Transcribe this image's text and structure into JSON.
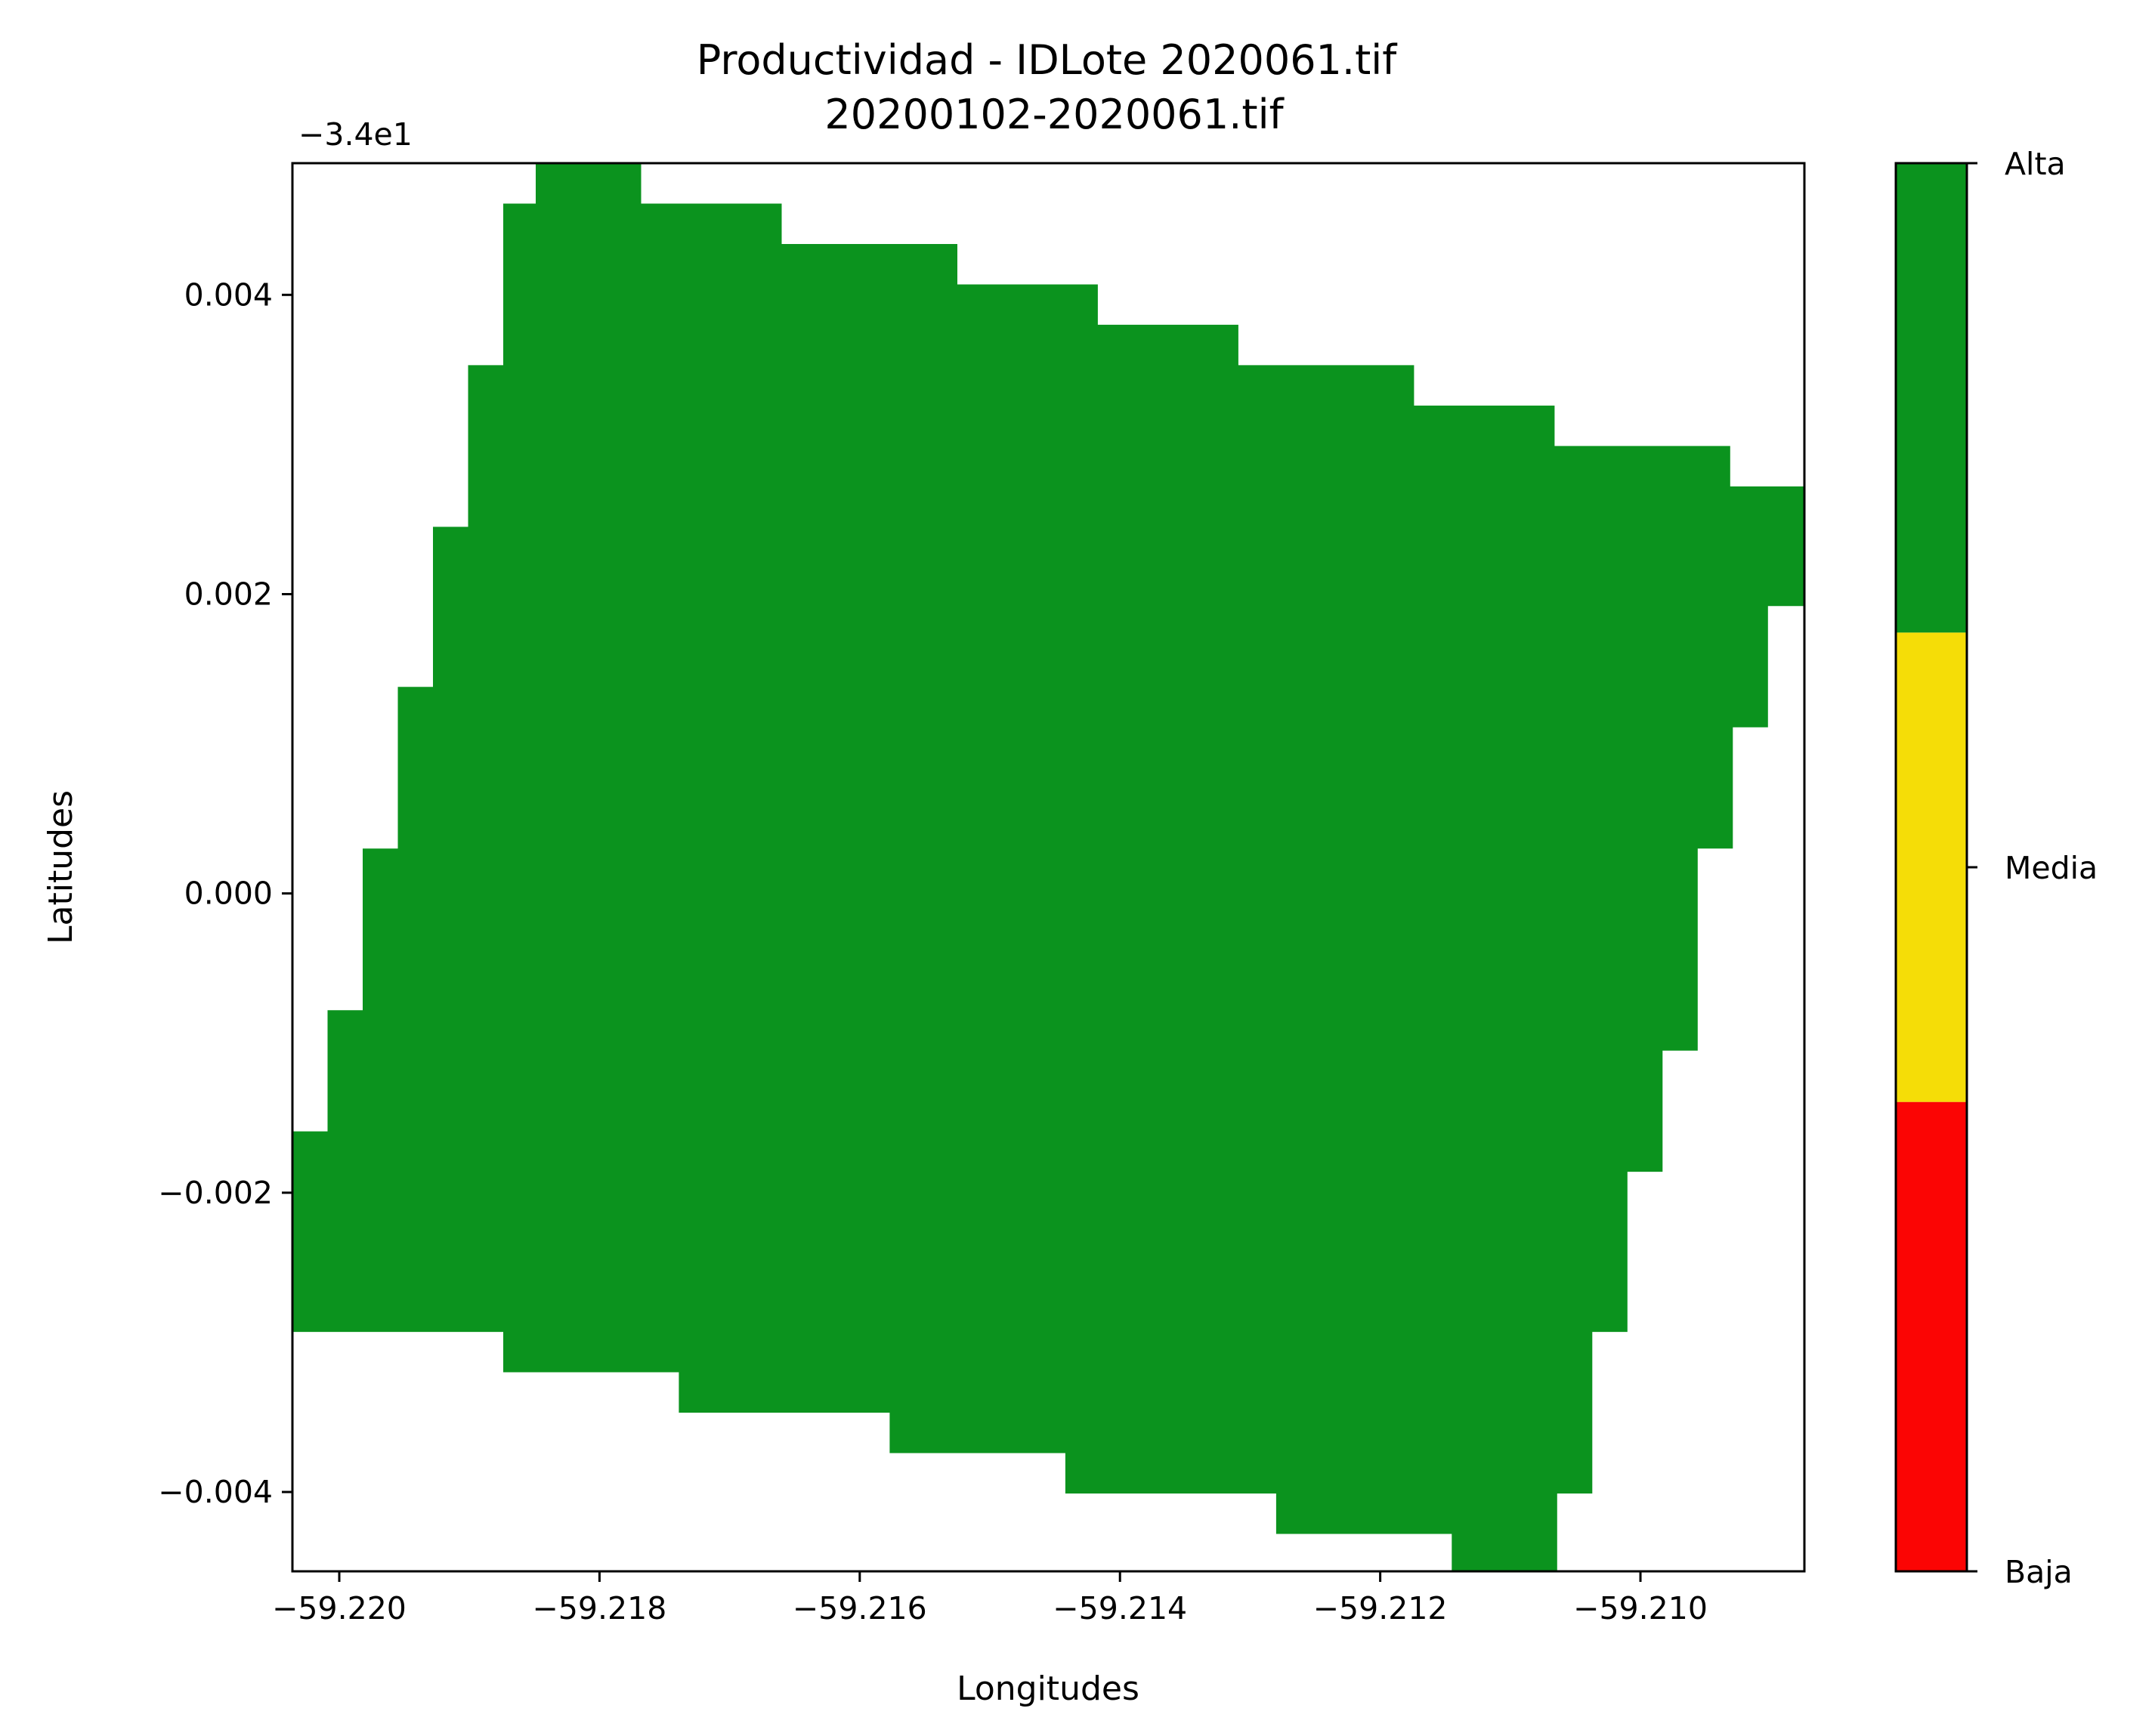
{
  "chart_data": {
    "type": "heatmap",
    "title": "Productividad - IDLote 2020061.tif",
    "subtitle": "20200102-2020061.tif",
    "xlabel": "Longitudes",
    "ylabel": "Latitudes",
    "y_offset_label": "−3.4e1",
    "xlim": [
      -59.22036,
      -59.20874
    ],
    "ylim": [
      -0.00453,
      0.00488
    ],
    "x_ticks": [
      -59.22,
      -59.218,
      -59.216,
      -59.214,
      -59.212,
      -59.21
    ],
    "x_tick_labels": [
      "−59.220",
      "−59.218",
      "−59.216",
      "−59.214",
      "−59.212",
      "−59.210"
    ],
    "y_ticks": [
      0.004,
      0.002,
      0.0,
      -0.002,
      -0.004
    ],
    "y_tick_labels": [
      "0.004",
      "0.002",
      "0.000",
      "−0.002",
      "−0.004"
    ],
    "colorbar": {
      "categories": [
        {
          "label": "Baja",
          "color": "#fb0504"
        },
        {
          "label": "Media",
          "color": "#f5dd07"
        },
        {
          "label": "Alta",
          "color": "#0b931e"
        }
      ]
    },
    "field_class": "Alta",
    "field_color": "#0b931e",
    "field_boundary": [
      [
        -59.21849,
        0.00488
      ],
      [
        -59.21768,
        0.00488
      ],
      [
        -59.21768,
        0.00461
      ],
      [
        -59.2166,
        0.00461
      ],
      [
        -59.2166,
        0.00434
      ],
      [
        -59.21525,
        0.00434
      ],
      [
        -59.21525,
        0.00407
      ],
      [
        -59.21417,
        0.00407
      ],
      [
        -59.21417,
        0.0038
      ],
      [
        -59.21309,
        0.0038
      ],
      [
        -59.21309,
        0.00353
      ],
      [
        -59.21174,
        0.00353
      ],
      [
        -59.21174,
        0.00326
      ],
      [
        -59.21066,
        0.00326
      ],
      [
        -59.21066,
        0.00299
      ],
      [
        -59.20931,
        0.00299
      ],
      [
        -59.20931,
        0.00272
      ],
      [
        -59.20874,
        0.00272
      ],
      [
        -59.20874,
        0.00192
      ],
      [
        -59.20902,
        0.00192
      ],
      [
        -59.20902,
        0.00111
      ],
      [
        -59.20929,
        0.00111
      ],
      [
        -59.20929,
        0.0003
      ],
      [
        -59.20956,
        0.0003
      ],
      [
        -59.20956,
        -0.00105
      ],
      [
        -59.20983,
        -0.00105
      ],
      [
        -59.20983,
        -0.00186
      ],
      [
        -59.2101,
        -0.00186
      ],
      [
        -59.2101,
        -0.00293
      ],
      [
        -59.21037,
        -0.00293
      ],
      [
        -59.21037,
        -0.00401
      ],
      [
        -59.21064,
        -0.00401
      ],
      [
        -59.21064,
        -0.00453
      ],
      [
        -59.21145,
        -0.00453
      ],
      [
        -59.21145,
        -0.00428
      ],
      [
        -59.2128,
        -0.00428
      ],
      [
        -59.2128,
        -0.00401
      ],
      [
        -59.21442,
        -0.00401
      ],
      [
        -59.21442,
        -0.00374
      ],
      [
        -59.21577,
        -0.00374
      ],
      [
        -59.21577,
        -0.00347
      ],
      [
        -59.21739,
        -0.00347
      ],
      [
        -59.21739,
        -0.0032
      ],
      [
        -59.21874,
        -0.0032
      ],
      [
        -59.21874,
        -0.00293
      ],
      [
        -59.22036,
        -0.00293
      ],
      [
        -59.22036,
        -0.00159
      ],
      [
        -59.22009,
        -0.00159
      ],
      [
        -59.22009,
        -0.00078
      ],
      [
        -59.21982,
        -0.00078
      ],
      [
        -59.21982,
        0.0003
      ],
      [
        -59.21955,
        0.0003
      ],
      [
        -59.21955,
        0.00138
      ],
      [
        -59.21928,
        0.00138
      ],
      [
        -59.21928,
        0.00245
      ],
      [
        -59.21901,
        0.00245
      ],
      [
        -59.21901,
        0.00353
      ],
      [
        -59.21874,
        0.00353
      ],
      [
        -59.21874,
        0.00461
      ],
      [
        -59.21849,
        0.00461
      ]
    ]
  }
}
